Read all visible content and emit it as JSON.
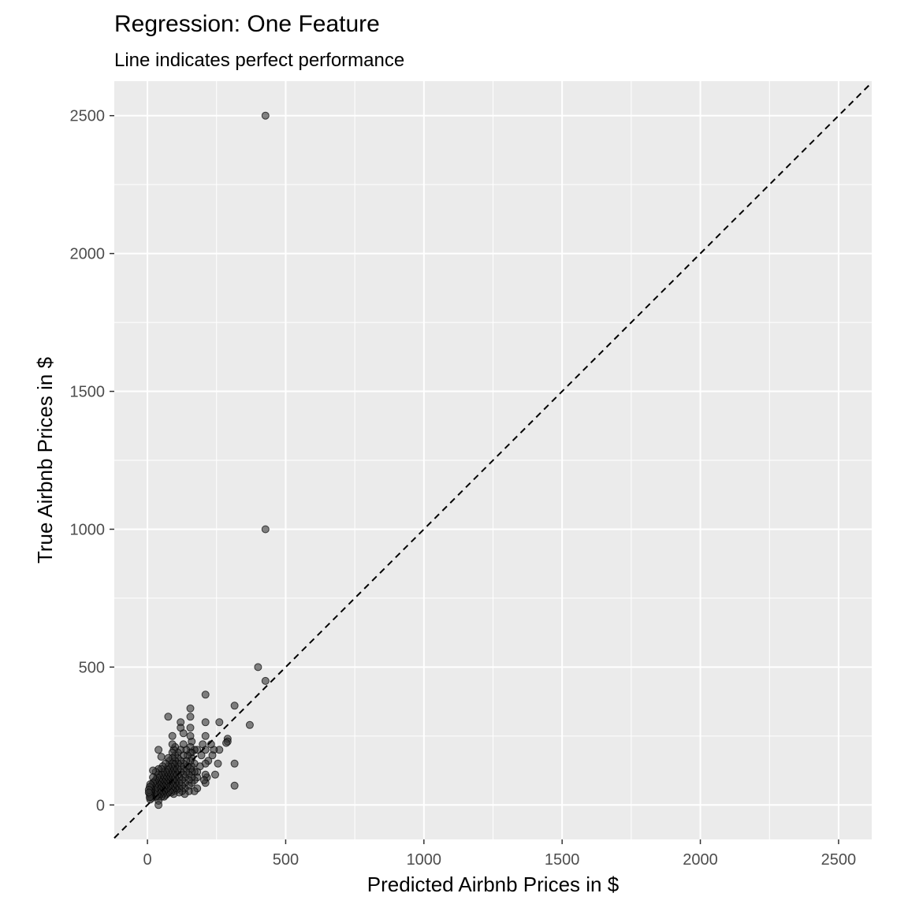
{
  "chart_data": {
    "type": "scatter",
    "title": "Regression: One Feature",
    "subtitle": "Line indicates perfect performance",
    "xlabel": "Predicted Airbnb Prices in $",
    "ylabel": "True Airbnb Prices in $",
    "xlim": [
      -120,
      2620
    ],
    "ylim": [
      -125,
      2625
    ],
    "x_ticks": [
      0,
      500,
      1000,
      1500,
      2000,
      2500
    ],
    "y_ticks": [
      0,
      500,
      1000,
      1500,
      2000,
      2500
    ],
    "grid": true,
    "reference_line": {
      "slope": 1,
      "intercept": 0,
      "style": "dashed",
      "color": "#000000"
    },
    "colors": {
      "panel_bg": "#ebebeb",
      "grid": "#ffffff",
      "point_fill": "#333333",
      "point_stroke": "#000000"
    },
    "points": [
      [
        427,
        2500
      ],
      [
        427,
        1000
      ],
      [
        400,
        500
      ],
      [
        427,
        450
      ],
      [
        370,
        290
      ],
      [
        315,
        360
      ],
      [
        315,
        150
      ],
      [
        315,
        70
      ],
      [
        290,
        240
      ],
      [
        290,
        230
      ],
      [
        285,
        225
      ],
      [
        260,
        300
      ],
      [
        260,
        200
      ],
      [
        255,
        150
      ],
      [
        245,
        110
      ],
      [
        240,
        200
      ],
      [
        235,
        180
      ],
      [
        230,
        220
      ],
      [
        220,
        160
      ],
      [
        215,
        100
      ],
      [
        210,
        400
      ],
      [
        210,
        300
      ],
      [
        210,
        250
      ],
      [
        210,
        200
      ],
      [
        210,
        150
      ],
      [
        210,
        110
      ],
      [
        210,
        80
      ],
      [
        205,
        90
      ],
      [
        200,
        220
      ],
      [
        195,
        180
      ],
      [
        190,
        140
      ],
      [
        180,
        200
      ],
      [
        180,
        120
      ],
      [
        180,
        100
      ],
      [
        180,
        60
      ],
      [
        170,
        200
      ],
      [
        170,
        150
      ],
      [
        170,
        120
      ],
      [
        170,
        90
      ],
      [
        170,
        50
      ],
      [
        160,
        230
      ],
      [
        160,
        190
      ],
      [
        160,
        170
      ],
      [
        160,
        140
      ],
      [
        160,
        120
      ],
      [
        160,
        100
      ],
      [
        160,
        80
      ],
      [
        155,
        350
      ],
      [
        155,
        320
      ],
      [
        155,
        280
      ],
      [
        155,
        250
      ],
      [
        155,
        210
      ],
      [
        155,
        190
      ],
      [
        155,
        160
      ],
      [
        155,
        130
      ],
      [
        150,
        110
      ],
      [
        150,
        90
      ],
      [
        150,
        70
      ],
      [
        150,
        50
      ],
      [
        145,
        180
      ],
      [
        145,
        140
      ],
      [
        140,
        120
      ],
      [
        140,
        200
      ],
      [
        140,
        160
      ],
      [
        135,
        100
      ],
      [
        135,
        80
      ],
      [
        135,
        60
      ],
      [
        135,
        40
      ],
      [
        130,
        260
      ],
      [
        130,
        220
      ],
      [
        130,
        180
      ],
      [
        130,
        150
      ],
      [
        130,
        130
      ],
      [
        130,
        110
      ],
      [
        125,
        90
      ],
      [
        125,
        70
      ],
      [
        125,
        50
      ],
      [
        120,
        300
      ],
      [
        120,
        280
      ],
      [
        120,
        200
      ],
      [
        120,
        160
      ],
      [
        120,
        140
      ],
      [
        120,
        120
      ],
      [
        115,
        100
      ],
      [
        115,
        80
      ],
      [
        115,
        60
      ],
      [
        115,
        45
      ],
      [
        110,
        190
      ],
      [
        110,
        170
      ],
      [
        110,
        150
      ],
      [
        110,
        130
      ],
      [
        110,
        110
      ],
      [
        105,
        90
      ],
      [
        105,
        70
      ],
      [
        105,
        55
      ],
      [
        100,
        210
      ],
      [
        100,
        180
      ],
      [
        100,
        160
      ],
      [
        100,
        140
      ],
      [
        100,
        120
      ],
      [
        100,
        100
      ],
      [
        100,
        80
      ],
      [
        100,
        60
      ],
      [
        95,
        200
      ],
      [
        95,
        150
      ],
      [
        95,
        130
      ],
      [
        95,
        110
      ],
      [
        95,
        90
      ],
      [
        95,
        70
      ],
      [
        95,
        50
      ],
      [
        95,
        40
      ],
      [
        90,
        250
      ],
      [
        90,
        220
      ],
      [
        90,
        190
      ],
      [
        90,
        170
      ],
      [
        90,
        150
      ],
      [
        90,
        130
      ],
      [
        90,
        110
      ],
      [
        90,
        90
      ],
      [
        90,
        70
      ],
      [
        90,
        55
      ],
      [
        85,
        140
      ],
      [
        85,
        120
      ],
      [
        85,
        100
      ],
      [
        85,
        80
      ],
      [
        85,
        60
      ],
      [
        85,
        45
      ],
      [
        80,
        160
      ],
      [
        80,
        130
      ],
      [
        80,
        110
      ],
      [
        80,
        90
      ],
      [
        80,
        70
      ],
      [
        80,
        50
      ],
      [
        75,
        320
      ],
      [
        75,
        170
      ],
      [
        75,
        140
      ],
      [
        75,
        120
      ],
      [
        75,
        100
      ],
      [
        75,
        85
      ],
      [
        75,
        65
      ],
      [
        75,
        45
      ],
      [
        70,
        130
      ],
      [
        70,
        110
      ],
      [
        70,
        95
      ],
      [
        70,
        80
      ],
      [
        70,
        60
      ],
      [
        70,
        40
      ],
      [
        65,
        150
      ],
      [
        65,
        120
      ],
      [
        65,
        100
      ],
      [
        65,
        85
      ],
      [
        65,
        70
      ],
      [
        65,
        55
      ],
      [
        65,
        35
      ],
      [
        60,
        110
      ],
      [
        60,
        95
      ],
      [
        60,
        80
      ],
      [
        60,
        65
      ],
      [
        60,
        50
      ],
      [
        60,
        30
      ],
      [
        55,
        140
      ],
      [
        55,
        120
      ],
      [
        55,
        100
      ],
      [
        55,
        85
      ],
      [
        55,
        70
      ],
      [
        55,
        55
      ],
      [
        55,
        40
      ],
      [
        50,
        175
      ],
      [
        50,
        130
      ],
      [
        50,
        110
      ],
      [
        50,
        90
      ],
      [
        50,
        75
      ],
      [
        50,
        60
      ],
      [
        50,
        45
      ],
      [
        50,
        30
      ],
      [
        45,
        100
      ],
      [
        45,
        85
      ],
      [
        45,
        70
      ],
      [
        45,
        55
      ],
      [
        45,
        40
      ],
      [
        40,
        200
      ],
      [
        40,
        130
      ],
      [
        40,
        110
      ],
      [
        40,
        90
      ],
      [
        40,
        75
      ],
      [
        40,
        60
      ],
      [
        40,
        45
      ],
      [
        40,
        30
      ],
      [
        40,
        15
      ],
      [
        40,
        0
      ],
      [
        35,
        100
      ],
      [
        35,
        80
      ],
      [
        35,
        65
      ],
      [
        35,
        50
      ],
      [
        35,
        35
      ],
      [
        30,
        120
      ],
      [
        30,
        90
      ],
      [
        30,
        75
      ],
      [
        30,
        60
      ],
      [
        30,
        45
      ],
      [
        30,
        30
      ],
      [
        25,
        85
      ],
      [
        25,
        70
      ],
      [
        25,
        55
      ],
      [
        25,
        40
      ],
      [
        20,
        125
      ],
      [
        20,
        100
      ],
      [
        20,
        80
      ],
      [
        15,
        70
      ],
      [
        15,
        55
      ],
      [
        15,
        40
      ],
      [
        15,
        25
      ],
      [
        12,
        60
      ],
      [
        12,
        45
      ],
      [
        12,
        30
      ],
      [
        10,
        75
      ],
      [
        10,
        50
      ],
      [
        10,
        35
      ],
      [
        10,
        20
      ],
      [
        8,
        65
      ],
      [
        8,
        40
      ],
      [
        8,
        28
      ],
      [
        5,
        55
      ],
      [
        5,
        45
      ]
    ]
  }
}
